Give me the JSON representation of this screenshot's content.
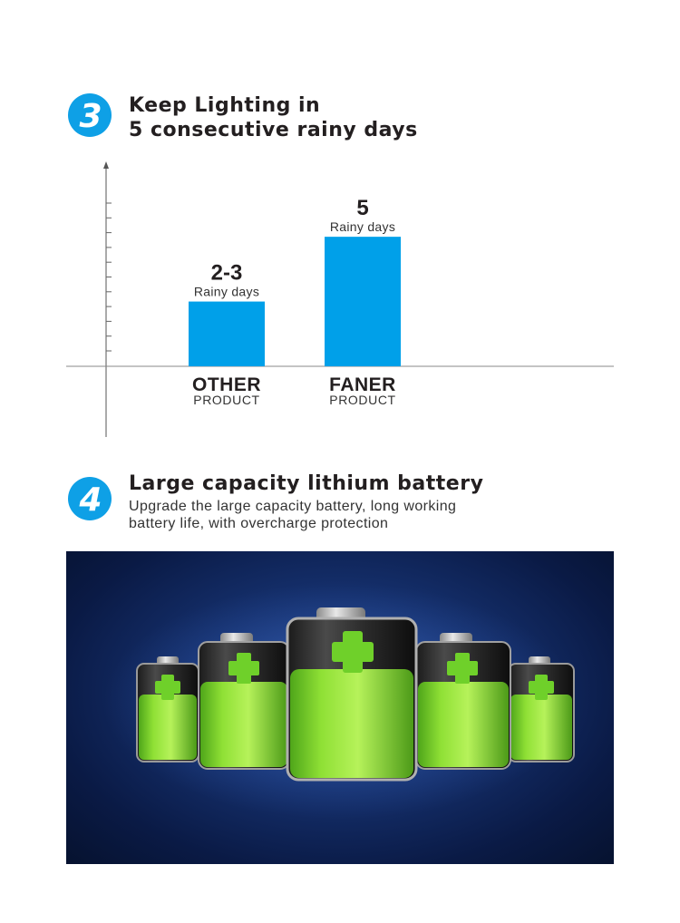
{
  "sections": [
    {
      "number": "3",
      "heading_line1": "Keep Lighting in",
      "heading_line2": "5 consecutive rainy days"
    },
    {
      "number": "4",
      "heading": "Large capacity lithium battery",
      "subtext_line1": "Upgrade the large capacity battery, long working",
      "subtext_line2": "battery life, with overcharge protection"
    }
  ],
  "colors": {
    "accent_blue": "#0ea0e6",
    "bar_blue": "#00a0e9",
    "text_dark": "#231f20",
    "battery_green": "#7ed321",
    "panel_navy": "#15306d"
  },
  "icons": [
    "number-3-badge",
    "number-4-badge",
    "battery-plus-icon"
  ],
  "chart_data": {
    "type": "bar",
    "categories": [
      {
        "name": "OTHER",
        "sub": "PRODUCT"
      },
      {
        "name": "FANER",
        "sub": "PRODUCT"
      }
    ],
    "values": [
      2.5,
      5
    ],
    "value_labels": [
      "2-3",
      "5"
    ],
    "unit_label": "Rainy days",
    "ylim": [
      0,
      7
    ],
    "grid": false,
    "axis_arrow": true
  }
}
